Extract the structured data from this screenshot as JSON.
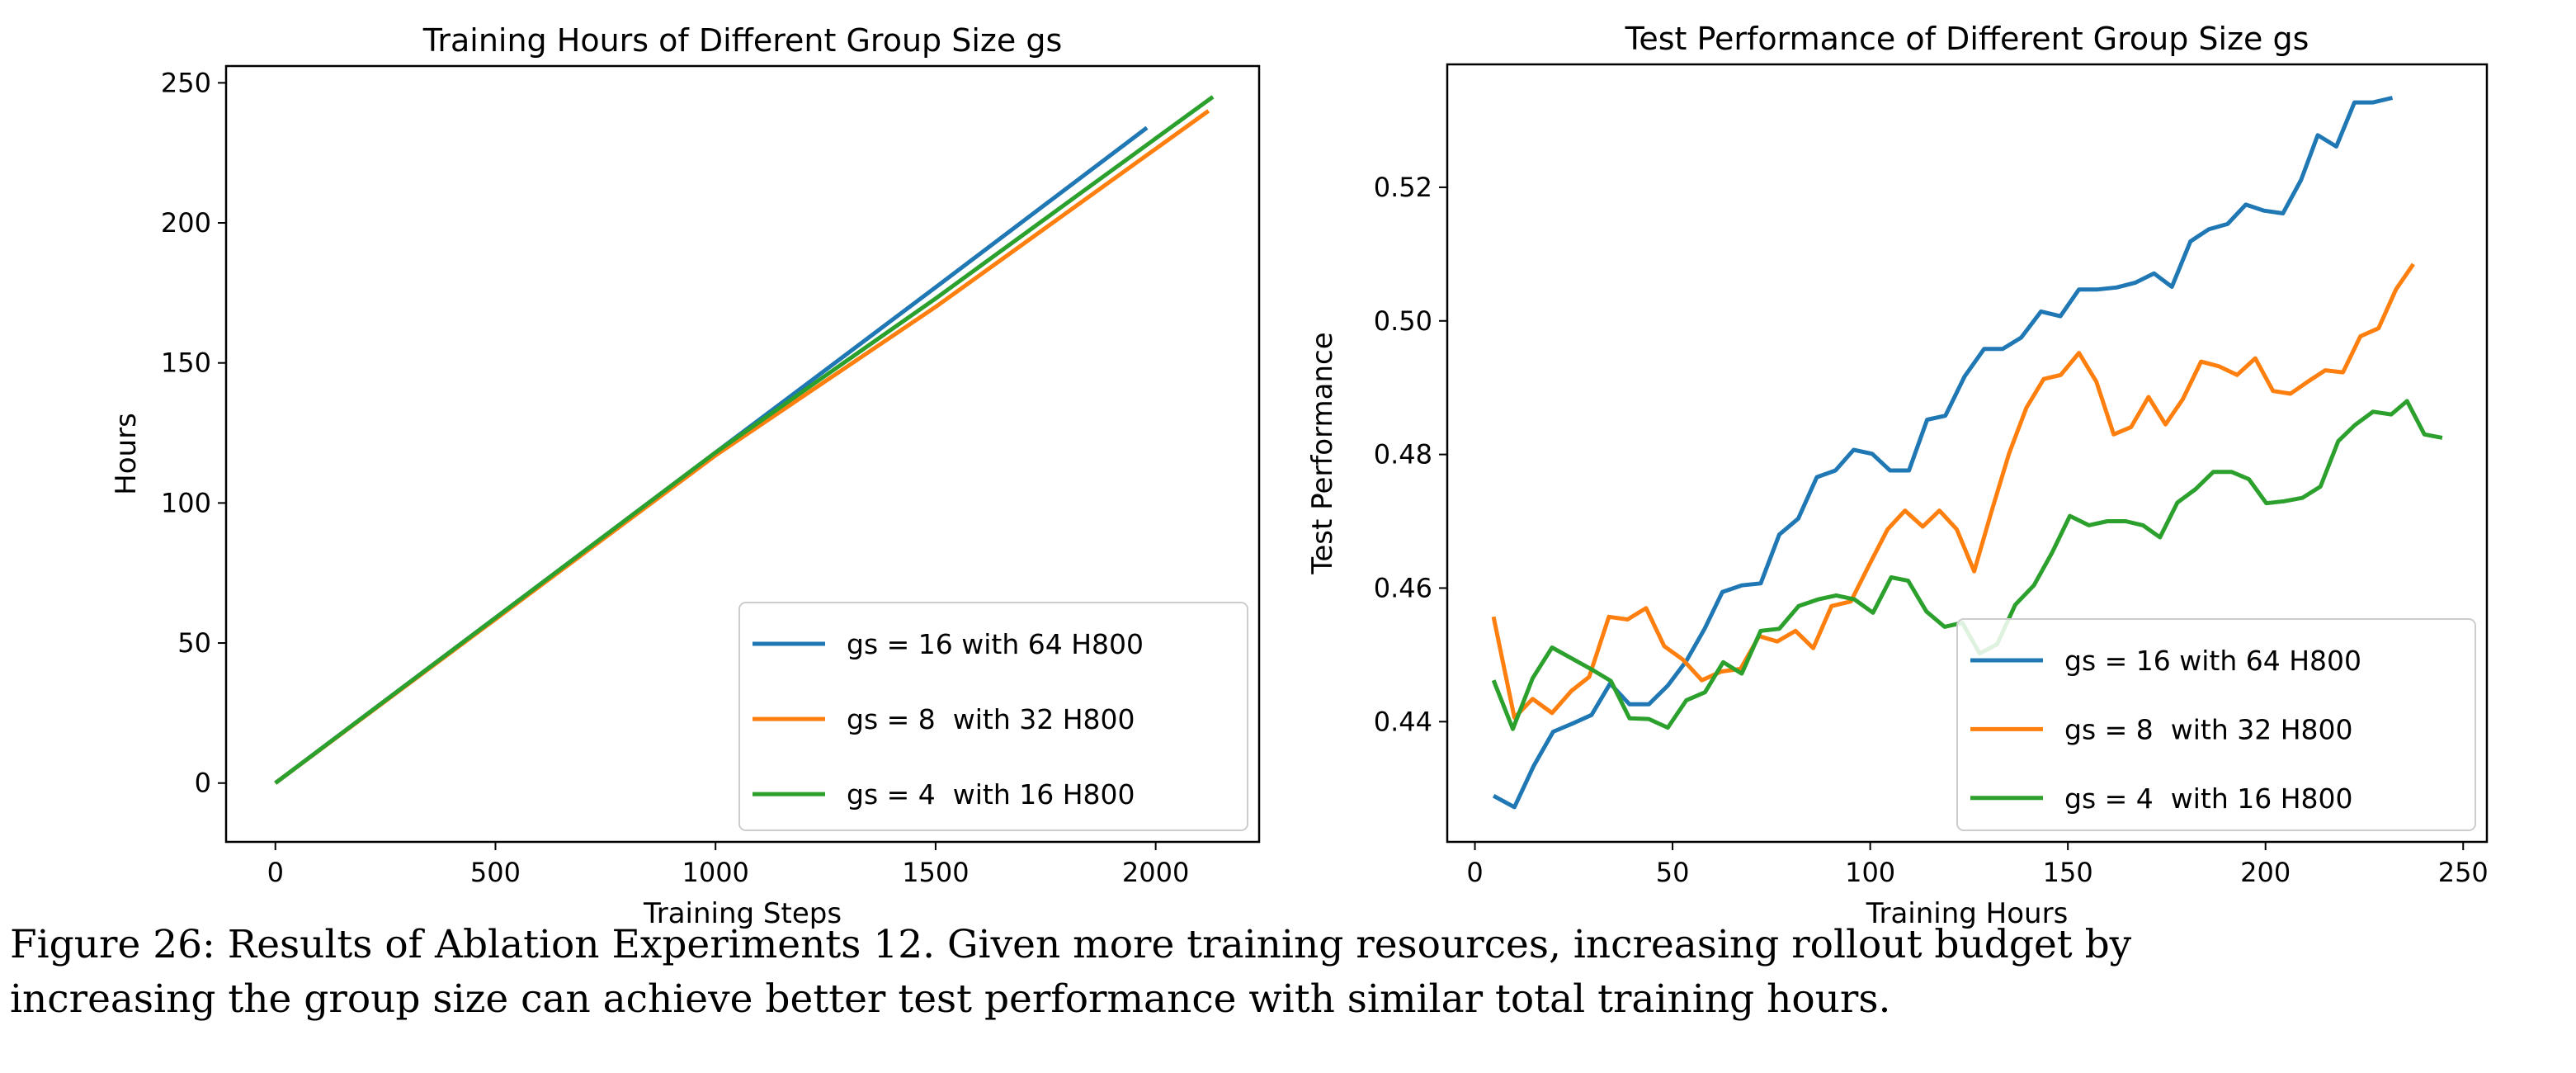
{
  "chart_data": [
    {
      "type": "line",
      "title": "Training Hours of Different Group Size gs",
      "xlabel": "Training Steps",
      "ylabel": "Hours",
      "xlim": [
        -112,
        2235
      ],
      "ylim": [
        -21,
        256
      ],
      "xticks": [
        0,
        500,
        1000,
        1500,
        2000
      ],
      "yticks": [
        0,
        50,
        100,
        150,
        200,
        250
      ],
      "grid": false,
      "legend_position": "bottom-right",
      "series": [
        {
          "name": "gs = 16 with 64 H800",
          "color": "#1f77b4",
          "x": [
            0,
            500,
            1000,
            1500,
            1980
          ],
          "y": [
            0,
            59,
            118,
            177,
            234
          ]
        },
        {
          "name": "gs = 8  with 32 H800",
          "color": "#ff7f0e",
          "x": [
            0,
            500,
            1000,
            1500,
            2120
          ],
          "y": [
            0,
            58.5,
            117,
            170,
            240
          ]
        },
        {
          "name": "gs = 4  with 16 H800",
          "color": "#2ca02c",
          "x": [
            0,
            500,
            1000,
            1500,
            2130
          ],
          "y": [
            0,
            59,
            118,
            173,
            245
          ]
        }
      ]
    },
    {
      "type": "line",
      "title": "Test Performance of Different Group Size gs",
      "xlabel": "Training Hours",
      "ylabel": "Test Performance",
      "xlim": [
        -7,
        256
      ],
      "ylim": [
        0.422,
        0.5384
      ],
      "xticks": [
        0,
        50,
        100,
        150,
        200,
        250
      ],
      "yticks": [
        0.44,
        0.46,
        0.48,
        0.5,
        0.52
      ],
      "ytick_labels": [
        "0.44",
        "0.46",
        "0.48",
        "0.50",
        "0.52"
      ],
      "grid": false,
      "legend_position": "bottom-right",
      "series": [
        {
          "name": "gs = 16 with 64 H800",
          "color": "#1f77b4",
          "x": [
            4.7,
            10,
            14.9,
            19.8,
            24.6,
            29.5,
            34.2,
            39.1,
            44,
            48.8,
            53.5,
            58.1,
            62.6,
            67.5,
            72.3,
            77,
            81.8,
            86.5,
            91.2,
            95.8,
            100.5,
            105,
            109.8,
            114.4,
            119,
            123.9,
            128.8,
            133.5,
            138.2,
            143.2,
            148.1,
            152.8,
            157.5,
            162.3,
            167,
            171.8,
            176.3,
            181,
            185.6,
            190.4,
            195,
            199.6,
            204.4,
            209,
            213.2,
            217.9,
            222.5,
            227.2,
            232.1
          ],
          "y": [
            0.4289,
            0.4272,
            0.4334,
            0.4385,
            0.4397,
            0.441,
            0.4457,
            0.4426,
            0.4426,
            0.4454,
            0.4491,
            0.4539,
            0.4594,
            0.4604,
            0.4607,
            0.468,
            0.4704,
            0.4766,
            0.4776,
            0.4807,
            0.4801,
            0.4776,
            0.4776,
            0.4852,
            0.4858,
            0.4917,
            0.4958,
            0.4958,
            0.4975,
            0.5014,
            0.5007,
            0.5047,
            0.5047,
            0.505,
            0.5057,
            0.5071,
            0.5051,
            0.5119,
            0.5137,
            0.5145,
            0.5174,
            0.5165,
            0.5161,
            0.5211,
            0.5278,
            0.5261,
            0.5327,
            0.5327,
            0.5334
          ]
        },
        {
          "name": "gs = 8  with 32 H800",
          "color": "#ff7f0e",
          "x": [
            4.7,
            10,
            14.6,
            19.5,
            24.4,
            28.9,
            33.9,
            38.6,
            43.3,
            47.9,
            52.6,
            57.4,
            62.3,
            67.2,
            71.9,
            76.5,
            81.1,
            85.6,
            90.2,
            95.1,
            99.6,
            104.4,
            108.8,
            113.3,
            117.5,
            121.9,
            126.3,
            130.7,
            135.1,
            139.5,
            143.9,
            148.2,
            152.8,
            157.2,
            161.6,
            166,
            170.4,
            174.7,
            179.1,
            183.7,
            188.2,
            192.8,
            197.4,
            201.9,
            206.3,
            210.7,
            215.1,
            219.6,
            224,
            228.6,
            233,
            237.4
          ],
          "y": [
            0.4557,
            0.4406,
            0.4434,
            0.4413,
            0.4446,
            0.4467,
            0.4557,
            0.4553,
            0.457,
            0.4513,
            0.4493,
            0.4462,
            0.4475,
            0.4479,
            0.4528,
            0.452,
            0.4536,
            0.451,
            0.4573,
            0.458,
            0.4633,
            0.4688,
            0.4716,
            0.4692,
            0.4716,
            0.4688,
            0.4625,
            0.4715,
            0.4801,
            0.487,
            0.4913,
            0.4919,
            0.4952,
            0.4909,
            0.483,
            0.4841,
            0.4886,
            0.4845,
            0.4883,
            0.4939,
            0.4932,
            0.4919,
            0.4944,
            0.4895,
            0.4891,
            0.4909,
            0.4926,
            0.4923,
            0.4977,
            0.4989,
            0.5047,
            0.5085
          ]
        },
        {
          "name": "gs = 4  with 16 H800",
          "color": "#2ca02c",
          "x": [
            4.7,
            9.6,
            14.6,
            19.5,
            24.4,
            29.3,
            34.4,
            39.1,
            44,
            48.8,
            53.5,
            58.2,
            62.8,
            67.5,
            72.3,
            77,
            81.9,
            86.8,
            91.4,
            96,
            100.7,
            105.3,
            109.6,
            114.2,
            118.8,
            123.3,
            127.7,
            132.1,
            136.7,
            141.4,
            146,
            150.5,
            155.3,
            160,
            164.6,
            169,
            173.3,
            177.7,
            182.3,
            186.8,
            191.4,
            195.8,
            200.2,
            204.7,
            209.3,
            213.9,
            218.4,
            222.6,
            227.2,
            231.8,
            235.8,
            240.2,
            244.7
          ],
          "y": [
            0.4462,
            0.4389,
            0.4465,
            0.4511,
            0.4495,
            0.4479,
            0.4461,
            0.4405,
            0.4404,
            0.4391,
            0.4432,
            0.4444,
            0.4489,
            0.4472,
            0.4536,
            0.4539,
            0.4573,
            0.4583,
            0.4589,
            0.4583,
            0.4563,
            0.4616,
            0.4611,
            0.4565,
            0.4542,
            0.4548,
            0.4502,
            0.4516,
            0.4575,
            0.4604,
            0.4653,
            0.4708,
            0.4694,
            0.47,
            0.47,
            0.4694,
            0.4676,
            0.4728,
            0.4748,
            0.4774,
            0.4774,
            0.4763,
            0.4727,
            0.473,
            0.4735,
            0.4752,
            0.482,
            0.4844,
            0.4864,
            0.486,
            0.488,
            0.483,
            0.4825
          ]
        }
      ]
    }
  ],
  "caption": {
    "line1": "Figure 26: Results of Ablation Experiments 12. Given more training resources, increasing rollout budget by",
    "line2": "increasing the group size can achieve better test performance with similar total training hours."
  }
}
